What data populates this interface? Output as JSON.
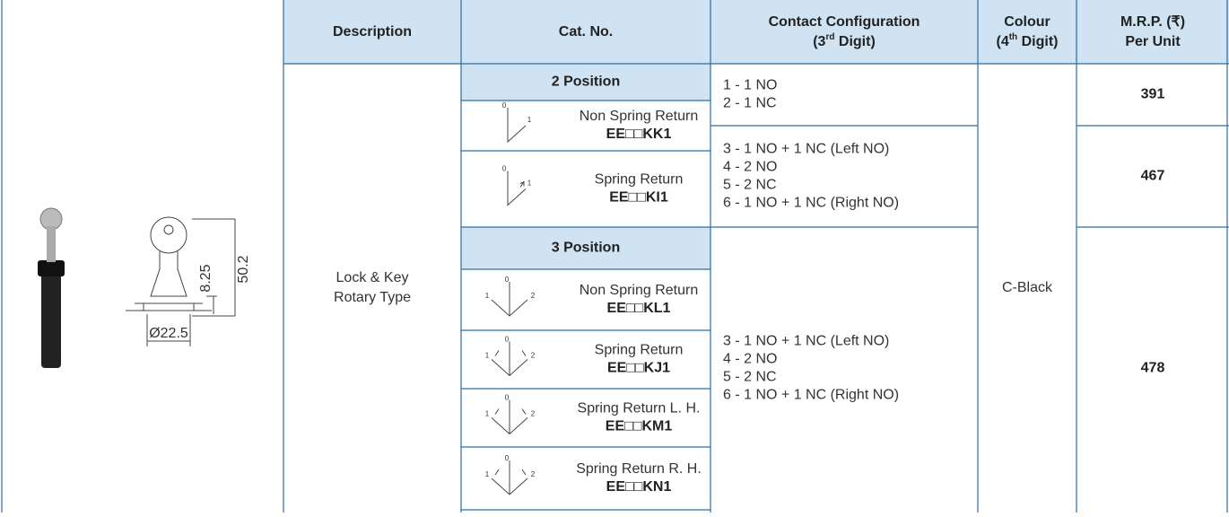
{
  "header": {
    "description": "Description",
    "cat_no": "Cat. No.",
    "contact": {
      "line1": "Contact Configuration",
      "pre": "(3",
      "sup": "rd",
      "post": " Digit)"
    },
    "colour": {
      "line1": "Colour",
      "pre": "(4",
      "sup": "th",
      "post": " Digit)"
    },
    "mrp": {
      "line1": "M.R.P. (₹)",
      "line2": "Per Unit"
    }
  },
  "drawing": {
    "height_total": "50.2",
    "height_lower": "8.25",
    "diameter": "Ø22.5"
  },
  "description": [
    "Lock & Key",
    "Rotary Type"
  ],
  "colour": "C-Black",
  "groups": [
    {
      "title": "2 Position",
      "items": [
        {
          "name": "Non Spring Return",
          "cat": "EE□□KK1",
          "icon_labels": [
            "0",
            "1"
          ]
        },
        {
          "name": "Spring Return",
          "cat": "EE□□KI1",
          "icon_labels": [
            "0",
            "1"
          ]
        }
      ]
    },
    {
      "title": "3 Position",
      "items": [
        {
          "name": "Non Spring Return",
          "cat": "EE□□KL1",
          "icon_labels": [
            "1",
            "0",
            "2"
          ]
        },
        {
          "name": "Spring Return",
          "cat": "EE□□KJ1",
          "icon_labels": [
            "1",
            "0",
            "2"
          ]
        },
        {
          "name": "Spring Return L. H.",
          "cat": "EE□□KM1",
          "icon_labels": [
            "1",
            "0",
            "2"
          ]
        },
        {
          "name": "Spring Return R. H.",
          "cat": "EE□□KN1",
          "icon_labels": [
            "1",
            "0",
            "2"
          ]
        }
      ]
    }
  ],
  "contacts": [
    [
      "1 - 1 NO",
      "2 - 1 NC"
    ],
    [
      "3 - 1 NO + 1 NC (Left NO)",
      "4 - 2 NO",
      "5 - 2 NC",
      "6 - 1 NO + 1 NC (Right NO)"
    ],
    [
      "3 - 1 NO + 1 NC (Left NO)",
      "4 - 2 NO",
      "5 - 2 NC",
      "6 - 1 NO + 1 NC (Right NO)"
    ]
  ],
  "prices": [
    391,
    467,
    478
  ]
}
